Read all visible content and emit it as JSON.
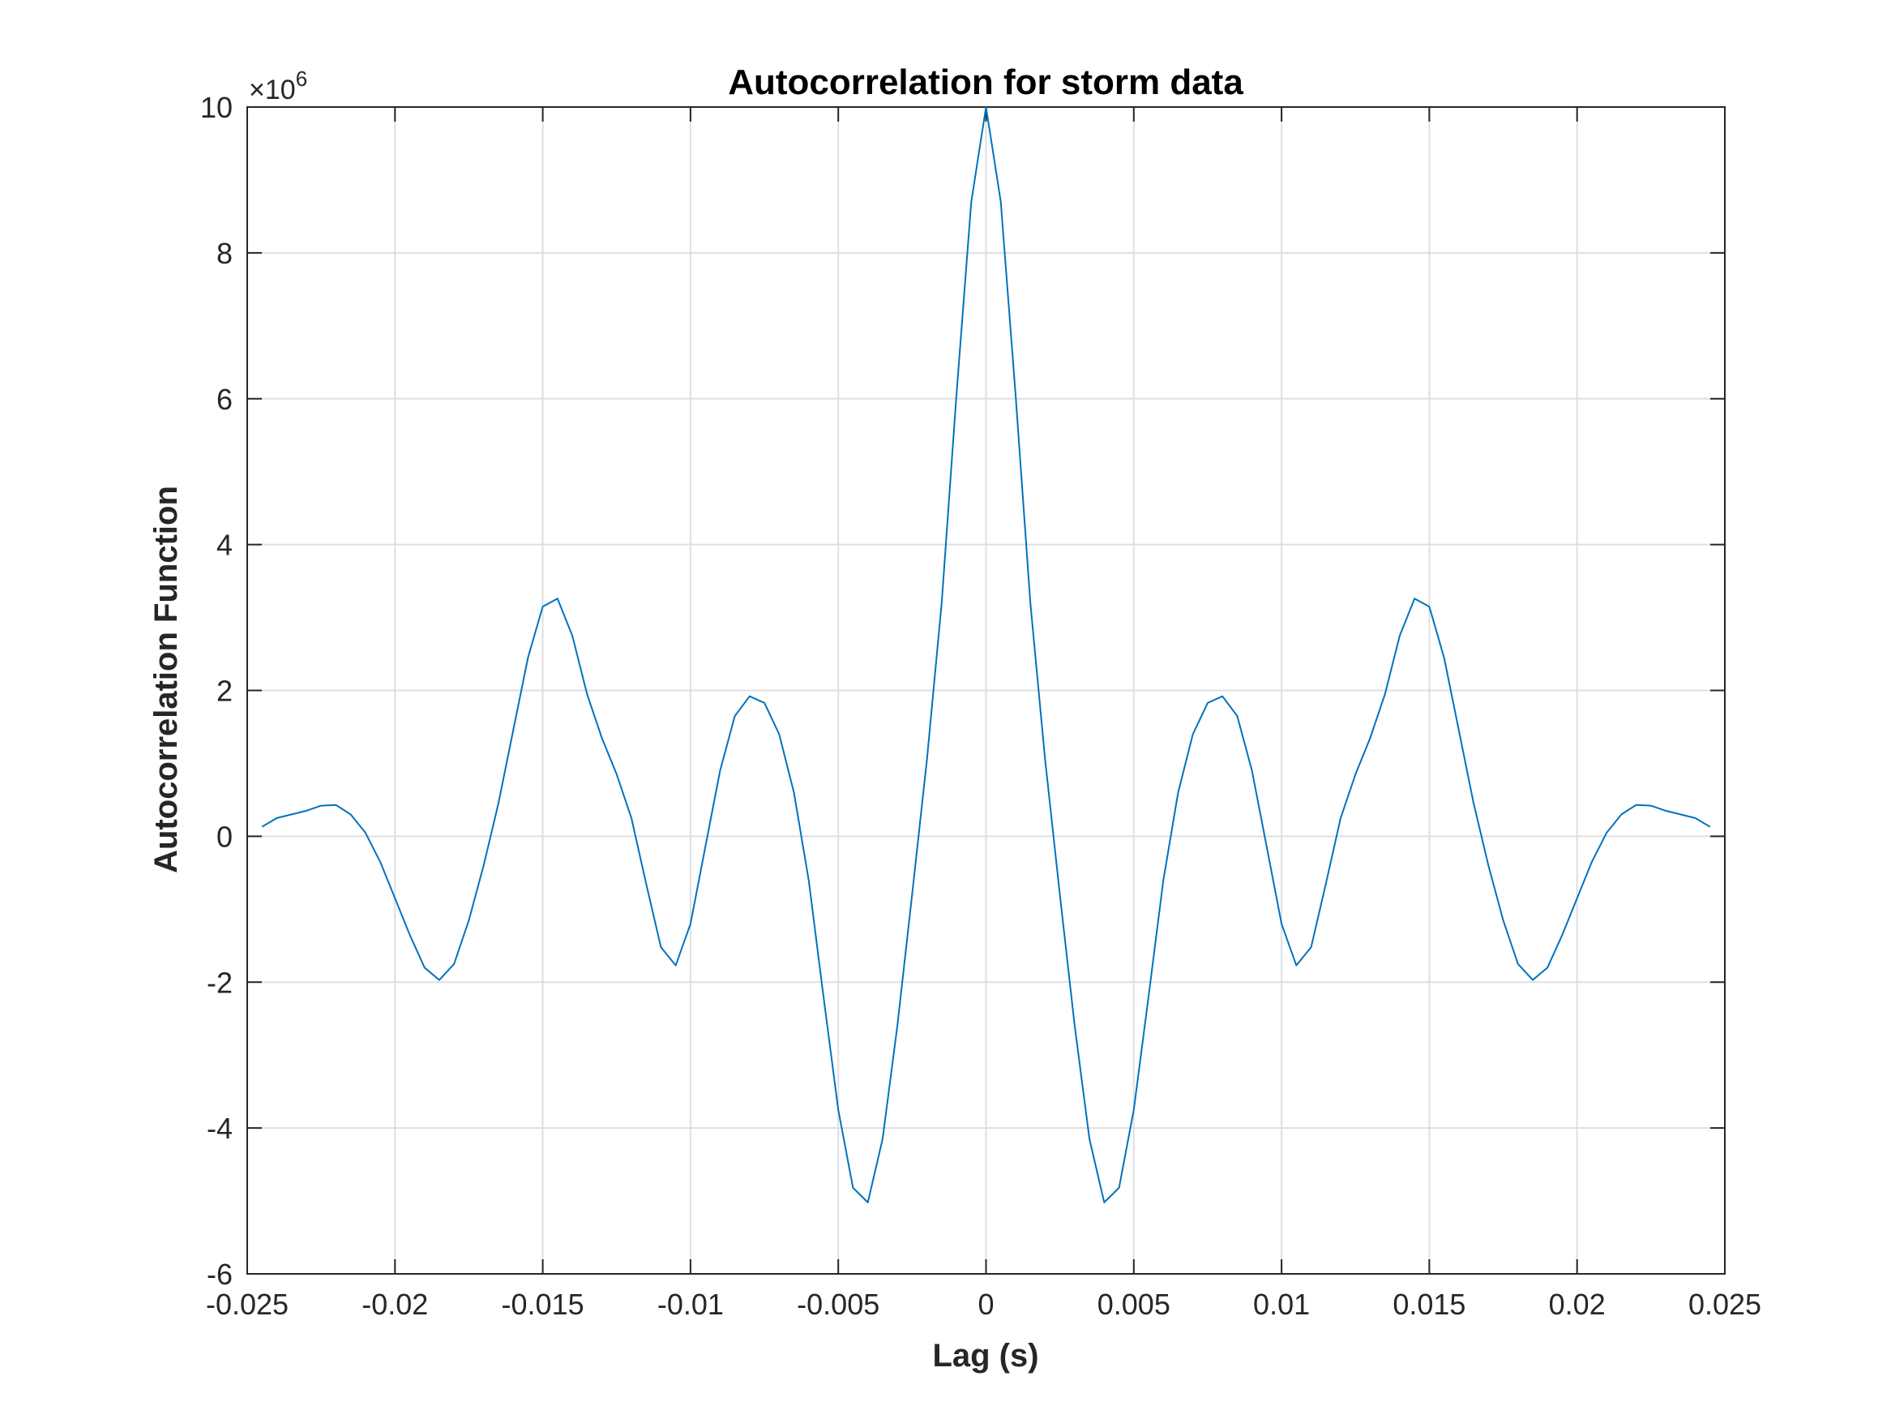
{
  "chart_data": {
    "type": "line",
    "title": "Autocorrelation for storm data",
    "xlabel": "Lag (s)",
    "ylabel": "Autocorrelation Function",
    "y_multiplier": {
      "base": "×10",
      "exponent": "6"
    },
    "xlim": [
      -0.025,
      0.025
    ],
    "ylim": [
      -6,
      10
    ],
    "x_ticks": [
      -0.025,
      -0.02,
      -0.015,
      -0.01,
      -0.005,
      0,
      0.005,
      0.01,
      0.015,
      0.02,
      0.025
    ],
    "x_tick_labels": [
      "-0.025",
      "-0.02",
      "-0.015",
      "-0.01",
      "-0.005",
      "0",
      "0.005",
      "0.01",
      "0.015",
      "0.02",
      "0.025"
    ],
    "y_ticks": [
      -6,
      -4,
      -2,
      0,
      2,
      4,
      6,
      8,
      10
    ],
    "y_tick_labels": [
      "-6",
      "-4",
      "-2",
      "0",
      "2",
      "4",
      "6",
      "8",
      "10"
    ],
    "grid": true,
    "line_color": "#0072BD",
    "series": [
      {
        "x": [
          -0.0245,
          -0.024,
          -0.0235,
          -0.023,
          -0.0225,
          -0.022,
          -0.0215,
          -0.021,
          -0.0205,
          -0.02,
          -0.0195,
          -0.019,
          -0.0185,
          -0.018,
          -0.0175,
          -0.017,
          -0.0165,
          -0.016,
          -0.0155,
          -0.015,
          -0.0145,
          -0.014,
          -0.0135,
          -0.013,
          -0.0125,
          -0.012,
          -0.0115,
          -0.011,
          -0.0105,
          -0.01,
          -0.0095,
          -0.009,
          -0.0085,
          -0.008,
          -0.0075,
          -0.007,
          -0.0065,
          -0.006,
          -0.0055,
          -0.005,
          -0.0045,
          -0.004,
          -0.0035,
          -0.003,
          -0.0025,
          -0.002,
          -0.0015,
          -0.001,
          -0.0005,
          0,
          0.0005,
          0.001,
          0.0015,
          0.002,
          0.0025,
          0.003,
          0.0035,
          0.004,
          0.0045,
          0.005,
          0.0055,
          0.006,
          0.0065,
          0.007,
          0.0075,
          0.008,
          0.0085,
          0.009,
          0.0095,
          0.01,
          0.0105,
          0.011,
          0.0115,
          0.012,
          0.0125,
          0.013,
          0.0135,
          0.014,
          0.0145,
          0.015,
          0.0155,
          0.016,
          0.0165,
          0.017,
          0.0175,
          0.018,
          0.0185,
          0.019,
          0.0195,
          0.02,
          0.0205,
          0.021,
          0.0215,
          0.022,
          0.0225,
          0.023,
          0.0235,
          0.024,
          0.0245
        ],
        "y": [
          0.13,
          0.25,
          0.3,
          0.35,
          0.42,
          0.43,
          0.3,
          0.05,
          -0.35,
          -0.85,
          -1.35,
          -1.8,
          -1.97,
          -1.75,
          -1.15,
          -0.4,
          0.45,
          1.45,
          2.45,
          3.15,
          3.26,
          2.75,
          1.95,
          1.35,
          0.85,
          0.25,
          -0.65,
          -1.52,
          -1.77,
          -1.2,
          -0.15,
          0.9,
          1.65,
          1.92,
          1.83,
          1.4,
          0.6,
          -0.6,
          -2.2,
          -3.75,
          -4.82,
          -5.02,
          -4.15,
          -2.6,
          -0.8,
          1.05,
          3.2,
          6.05,
          8.7,
          10.0,
          8.7,
          6.05,
          3.2,
          1.05,
          -0.8,
          -2.6,
          -4.15,
          -5.02,
          -4.82,
          -3.75,
          -2.2,
          -0.6,
          0.6,
          1.4,
          1.83,
          1.92,
          1.65,
          0.9,
          -0.15,
          -1.2,
          -1.77,
          -1.52,
          -0.65,
          0.25,
          0.85,
          1.35,
          1.95,
          2.75,
          3.26,
          3.15,
          2.45,
          1.45,
          0.45,
          -0.4,
          -1.15,
          -1.75,
          -1.97,
          -1.8,
          -1.35,
          -0.85,
          -0.35,
          0.05,
          0.3,
          0.43,
          0.42,
          0.35,
          0.3,
          0.25,
          0.13
        ]
      }
    ]
  }
}
